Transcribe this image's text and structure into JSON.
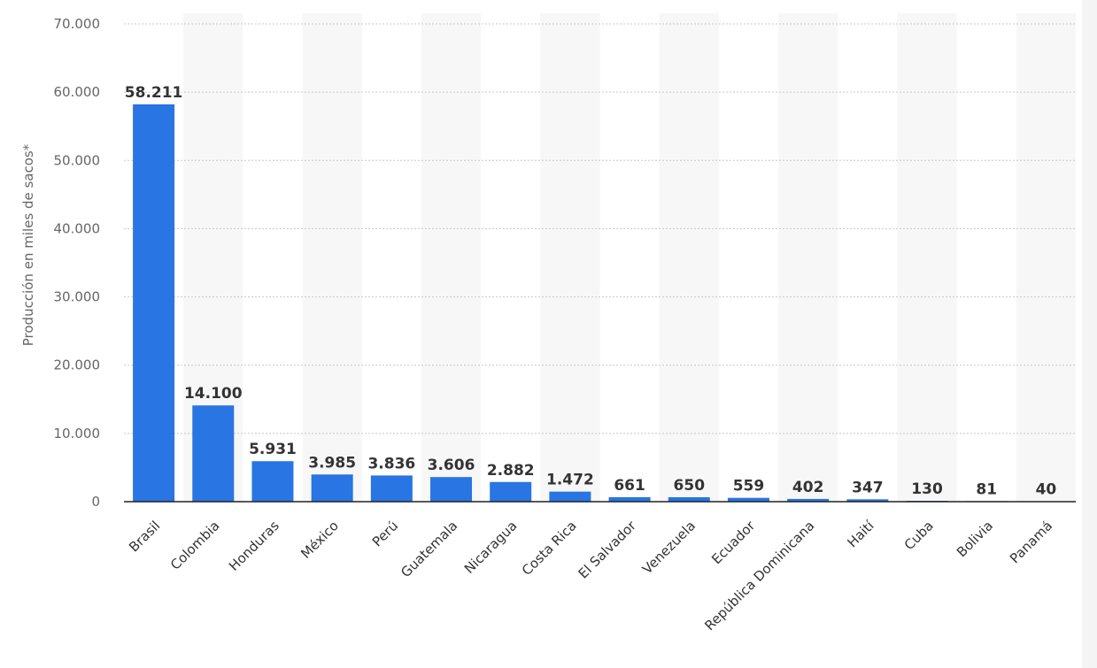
{
  "chart_data": {
    "type": "bar",
    "ylabel": "Producción en miles de sacos*",
    "ylim": [
      0,
      70000
    ],
    "y_ticks": [
      "0",
      "10.000",
      "20.000",
      "30.000",
      "40.000",
      "50.000",
      "60.000",
      "70.000"
    ],
    "y_tick_values": [
      0,
      10000,
      20000,
      30000,
      40000,
      50000,
      60000,
      70000
    ],
    "categories": [
      "Brasil",
      "Colombia",
      "Honduras",
      "México",
      "Perú",
      "Guatemala",
      "Nicaragua",
      "Costa Rica",
      "El Salvador",
      "Venezuela",
      "Ecuador",
      "República Dominicana",
      "Haití",
      "Cuba",
      "Bolivia",
      "Panamá"
    ],
    "values": [
      58211,
      14100,
      5931,
      3985,
      3836,
      3606,
      2882,
      1472,
      661,
      650,
      559,
      402,
      347,
      130,
      81,
      40
    ],
    "value_labels": [
      "58.211",
      "14.100",
      "5.931",
      "3.985",
      "3.836",
      "3.606",
      "2.882",
      "1.472",
      "661",
      "650",
      "559",
      "402",
      "347",
      "130",
      "81",
      "40"
    ],
    "grid": true,
    "colors": {
      "bar": "#2875e3",
      "band": "#f7f7f7",
      "grid": "#c8c8c8",
      "axis": "#222222",
      "label": "#333333",
      "tick": "#666666"
    }
  }
}
